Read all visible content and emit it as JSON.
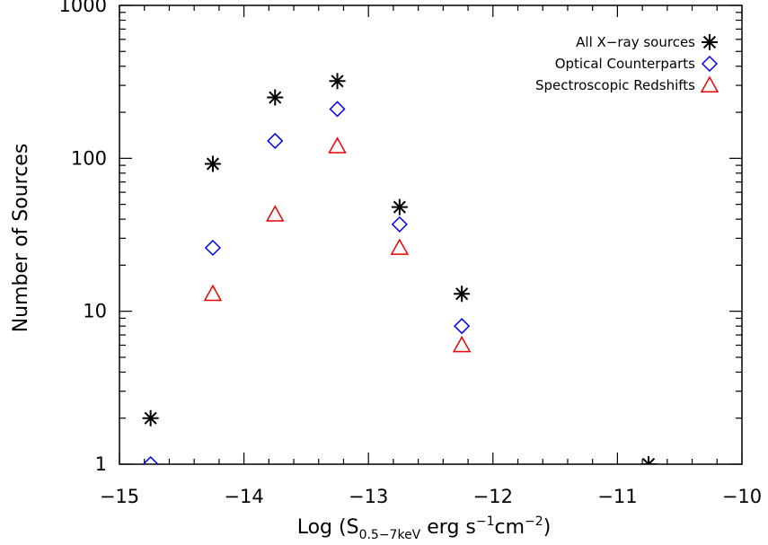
{
  "chart_data": {
    "type": "scatter",
    "title": "",
    "xlabel": {
      "prefix": "Log (S",
      "subscript": "0.5−7keV",
      "middle": " erg s",
      "sup1": "−1",
      "middle2": "cm",
      "sup2": "−2",
      "suffix": ")"
    },
    "ylabel": "Number of Sources",
    "xlim": [
      -15,
      -10
    ],
    "ylim": [
      1,
      1000
    ],
    "yscale": "log",
    "xticks": [
      -15,
      -14,
      -13,
      -12,
      -11,
      -10
    ],
    "xtick_labels": [
      "−15",
      "−14",
      "−13",
      "−12",
      "−11",
      "−10"
    ],
    "yticks": [
      1,
      10,
      100,
      1000
    ],
    "ytick_labels": [
      "1",
      "10",
      "100",
      "1000"
    ],
    "grid": false,
    "legend_position": "top-right",
    "series": [
      {
        "name": "All X−ray sources",
        "marker": "asterisk",
        "color": "#000000",
        "x": [
          -14.75,
          -14.25,
          -13.75,
          -13.25,
          -12.75,
          -12.25,
          -10.75
        ],
        "y": [
          2,
          92,
          250,
          320,
          48,
          13,
          1
        ]
      },
      {
        "name": "Optical Counterparts",
        "marker": "diamond",
        "color": "#0000ee",
        "x": [
          -14.75,
          -14.25,
          -13.75,
          -13.25,
          -12.75,
          -12.25
        ],
        "y": [
          1,
          26,
          130,
          210,
          37,
          8
        ]
      },
      {
        "name": "Spectroscopic Redshifts",
        "marker": "triangle",
        "color": "#ee0000",
        "x": [
          -14.25,
          -13.75,
          -13.25,
          -12.75,
          -12.25
        ],
        "y": [
          13,
          43,
          120,
          26,
          6
        ]
      }
    ]
  }
}
